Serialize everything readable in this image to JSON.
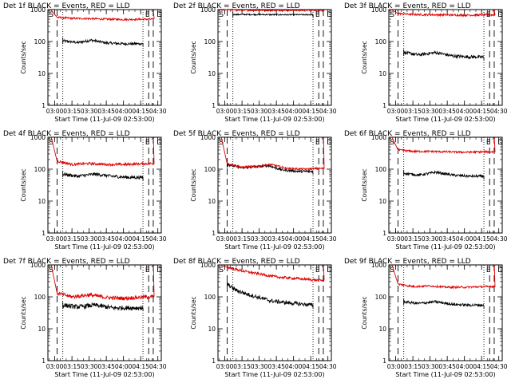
{
  "colors": {
    "events": "#000000",
    "lld": "#e00000",
    "axis": "#000000",
    "background": "#ffffff"
  },
  "chart_data": [
    {
      "type": "line",
      "title": "Det 1f BLACK = Events, RED = LLD",
      "xlabel": "Start Time (11-Jul-09 02:53:00)",
      "ylabel": "Counts/sec",
      "yscale": "log",
      "ylim": [
        1,
        1000
      ],
      "xlim": [
        "02:54",
        "04:33"
      ],
      "xticks": [
        "03:00",
        "03:15",
        "03:30",
        "03:45",
        "04:00",
        "04:15",
        "04:30"
      ],
      "yticks": [
        "1",
        "10",
        "100",
        "1000"
      ],
      "markers": {
        "S": "02:55",
        "E": "04:19",
        "D": "04:29"
      },
      "events_window": [
        "03:07",
        "04:17"
      ],
      "dashed_lines": [
        "03:02",
        "04:22",
        "04:26"
      ],
      "dotted_lines": [
        "03:07",
        "04:17"
      ],
      "series": [
        {
          "color": "black",
          "start": "03:07",
          "end": "04:17",
          "points": [
            [
              "03:07",
              105
            ],
            [
              "03:20",
              92
            ],
            [
              "03:32",
              110
            ],
            [
              "03:45",
              90
            ],
            [
              "04:00",
              85
            ],
            [
              "04:17",
              85
            ]
          ],
          "noise": 0.04
        },
        {
          "color": "red",
          "start": "02:56",
          "end": "04:27",
          "spike_start": [
            "02:56",
            1000
          ],
          "spike_end": [
            "04:27",
            1000
          ],
          "points": [
            [
              "03:02",
              570
            ],
            [
              "03:15",
              530
            ],
            [
              "03:30",
              520
            ],
            [
              "03:45",
              500
            ],
            [
              "04:00",
              490
            ],
            [
              "04:22",
              500
            ]
          ],
          "noise": 0.03
        }
      ]
    },
    {
      "type": "line",
      "title": "Det 2f BLACK = Events, RED = LLD",
      "xlabel": "Start Time (11-Jul-09 02:53:00)",
      "ylabel": "Counts/sec",
      "yscale": "log",
      "ylim": [
        1,
        1000
      ],
      "xlim": [
        "02:54",
        "04:33"
      ],
      "xticks": [
        "03:00",
        "03:15",
        "03:30",
        "03:45",
        "04:00",
        "04:15",
        "04:30"
      ],
      "yticks": [
        "1",
        "10",
        "100",
        "1000"
      ],
      "markers": {
        "S": "02:55",
        "E": "04:19",
        "D": "04:29"
      },
      "events_window": [
        "03:07",
        "04:17"
      ],
      "dashed_lines": [
        "03:02",
        "04:22",
        "04:26"
      ],
      "dotted_lines": [
        "03:07",
        "04:17"
      ],
      "series": [
        {
          "color": "black",
          "start": "03:07",
          "end": "04:17",
          "points": [
            [
              "03:07",
              700
            ],
            [
              "03:30",
              700
            ],
            [
              "03:45",
              690
            ],
            [
              "04:00",
              690
            ],
            [
              "04:17",
              690
            ]
          ],
          "noise": 0.02
        },
        {
          "color": "red",
          "start": "02:56",
          "end": "04:27",
          "spike_start": [
            "02:56",
            1000
          ],
          "spike_end": [
            "04:27",
            1000
          ],
          "points": [
            [
              "03:02",
              1000
            ],
            [
              "03:15",
              950
            ],
            [
              "03:30",
              950
            ],
            [
              "03:45",
              940
            ],
            [
              "04:00",
              950
            ],
            [
              "04:22",
              950
            ]
          ],
          "noise": 0.02
        }
      ]
    },
    {
      "type": "line",
      "title": "Det 3f BLACK = Events, RED = LLD",
      "xlabel": "Start Time (11-Jul-09 02:53:00)",
      "ylabel": "Counts/sec",
      "yscale": "log",
      "ylim": [
        1,
        1000
      ],
      "xlim": [
        "02:54",
        "04:33"
      ],
      "xticks": [
        "03:00",
        "03:15",
        "03:30",
        "03:45",
        "04:00",
        "04:15",
        "04:30"
      ],
      "yticks": [
        "1",
        "10",
        "100",
        "1000"
      ],
      "markers": {
        "S": "02:55",
        "E": "04:19",
        "D": "04:29"
      },
      "events_window": [
        "03:07",
        "04:17"
      ],
      "dashed_lines": [
        "03:02",
        "04:22",
        "04:26"
      ],
      "dotted_lines": [
        "03:07",
        "04:17"
      ],
      "series": [
        {
          "color": "black",
          "start": "03:07",
          "end": "04:17",
          "points": [
            [
              "03:07",
              45
            ],
            [
              "03:20",
              38
            ],
            [
              "03:35",
              45
            ],
            [
              "03:50",
              35
            ],
            [
              "04:05",
              33
            ],
            [
              "04:17",
              32
            ]
          ],
          "noise": 0.05
        },
        {
          "color": "red",
          "start": "02:56",
          "end": "04:27",
          "spike_start": [
            "02:56",
            1000
          ],
          "spike_end": [
            "04:27",
            1000
          ],
          "points": [
            [
              "03:02",
              750
            ],
            [
              "03:15",
              700
            ],
            [
              "03:30",
              690
            ],
            [
              "03:45",
              680
            ],
            [
              "04:00",
              670
            ],
            [
              "04:22",
              680
            ]
          ],
          "noise": 0.03
        }
      ]
    },
    {
      "type": "line",
      "title": "Det 4f BLACK = Events, RED = LLD",
      "xlabel": "Start Time (11-Jul-09 02:53:00)",
      "ylabel": "Counts/sec",
      "yscale": "log",
      "ylim": [
        1,
        1000
      ],
      "xlim": [
        "02:54",
        "04:33"
      ],
      "xticks": [
        "03:00",
        "03:15",
        "03:30",
        "03:45",
        "04:00",
        "04:15",
        "04:30"
      ],
      "yticks": [
        "1",
        "10",
        "100",
        "1000"
      ],
      "markers": {
        "S": "02:55",
        "E": "04:19",
        "D": "04:29"
      },
      "events_window": [
        "03:07",
        "04:17"
      ],
      "dashed_lines": [
        "03:02",
        "04:22",
        "04:26"
      ],
      "dotted_lines": [
        "03:07",
        "04:17"
      ],
      "series": [
        {
          "color": "black",
          "start": "03:07",
          "end": "04:17",
          "points": [
            [
              "03:07",
              70
            ],
            [
              "03:20",
              60
            ],
            [
              "03:35",
              70
            ],
            [
              "03:50",
              60
            ],
            [
              "04:05",
              55
            ],
            [
              "04:17",
              55
            ]
          ],
          "noise": 0.05
        },
        {
          "color": "red",
          "start": "02:56",
          "end": "04:27",
          "spike_start": [
            "02:56",
            1000
          ],
          "spike_end": [
            "04:27",
            1000
          ],
          "points": [
            [
              "03:02",
              180
            ],
            [
              "03:15",
              140
            ],
            [
              "03:30",
              150
            ],
            [
              "03:45",
              140
            ],
            [
              "04:00",
              140
            ],
            [
              "04:22",
              150
            ]
          ],
          "noise": 0.04
        }
      ]
    },
    {
      "type": "line",
      "title": "Det 5f BLACK = Events, RED = LLD",
      "xlabel": "Start Time (11-Jul-09 02:53:00)",
      "ylabel": "Counts/sec",
      "yscale": "log",
      "ylim": [
        1,
        1000
      ],
      "xlim": [
        "02:54",
        "04:33"
      ],
      "xticks": [
        "03:00",
        "03:15",
        "03:30",
        "03:45",
        "04:00",
        "04:15",
        "04:30"
      ],
      "yticks": [
        "1",
        "10",
        "100",
        "1000"
      ],
      "markers": {
        "S": "02:55",
        "E": "04:19",
        "D": "04:29"
      },
      "events_window": [
        "03:07",
        "04:17"
      ],
      "dashed_lines": [
        "03:02",
        "04:22",
        "04:26"
      ],
      "dotted_lines": [
        "03:07",
        "04:17"
      ],
      "series": [
        {
          "color": "black",
          "start": "03:02",
          "end": "04:17",
          "points": [
            [
              "03:02",
              140
            ],
            [
              "03:15",
              110
            ],
            [
              "03:30",
              120
            ],
            [
              "03:38",
              130
            ],
            [
              "03:50",
              95
            ],
            [
              "04:05",
              85
            ],
            [
              "04:17",
              85
            ]
          ],
          "noise": 0.04
        },
        {
          "color": "red",
          "start": "02:56",
          "end": "04:27",
          "spike_start": [
            "02:56",
            1000
          ],
          "spike_end": [
            "04:27",
            1000
          ],
          "points": [
            [
              "03:02",
              150
            ],
            [
              "03:15",
              115
            ],
            [
              "03:30",
              125
            ],
            [
              "03:40",
              140
            ],
            [
              "03:55",
              105
            ],
            [
              "04:10",
              100
            ],
            [
              "04:22",
              105
            ]
          ],
          "noise": 0.03
        }
      ]
    },
    {
      "type": "line",
      "title": "Det 6f BLACK = Events, RED = LLD",
      "xlabel": "Start Time (11-Jul-09 02:53:00)",
      "ylabel": "Counts/sec",
      "yscale": "log",
      "ylim": [
        1,
        1000
      ],
      "xlim": [
        "02:54",
        "04:33"
      ],
      "xticks": [
        "03:00",
        "03:15",
        "03:30",
        "03:45",
        "04:00",
        "04:15",
        "04:30"
      ],
      "yticks": [
        "1",
        "10",
        "100",
        "1000"
      ],
      "markers": {
        "S": "02:55",
        "E": "04:19",
        "D": "04:29"
      },
      "events_window": [
        "03:07",
        "04:17"
      ],
      "dashed_lines": [
        "03:02",
        "04:22",
        "04:26"
      ],
      "dotted_lines": [
        "03:07",
        "04:17"
      ],
      "series": [
        {
          "color": "black",
          "start": "03:07",
          "end": "04:17",
          "points": [
            [
              "03:07",
              75
            ],
            [
              "03:20",
              65
            ],
            [
              "03:35",
              80
            ],
            [
              "03:50",
              65
            ],
            [
              "04:05",
              60
            ],
            [
              "04:17",
              60
            ]
          ],
          "noise": 0.04
        },
        {
          "color": "red",
          "start": "02:56",
          "end": "04:27",
          "spike_start": [
            "02:56",
            1000
          ],
          "spike_end": [
            "04:27",
            1000
          ],
          "points": [
            [
              "03:02",
              400
            ],
            [
              "03:15",
              360
            ],
            [
              "03:30",
              360
            ],
            [
              "03:45",
              350
            ],
            [
              "04:00",
              340
            ],
            [
              "04:22",
              350
            ]
          ],
          "noise": 0.03
        }
      ]
    },
    {
      "type": "line",
      "title": "Det 7f BLACK = Events, RED = LLD",
      "xlabel": "Start Time (11-Jul-09 02:53:00)",
      "ylabel": "Counts/sec",
      "yscale": "log",
      "ylim": [
        1,
        1000
      ],
      "xlim": [
        "02:54",
        "04:33"
      ],
      "xticks": [
        "03:00",
        "03:15",
        "03:30",
        "03:45",
        "04:00",
        "04:15",
        "04:30"
      ],
      "yticks": [
        "1",
        "10",
        "100",
        "1000"
      ],
      "markers": {
        "S": "02:55",
        "E": "04:19",
        "D": "04:29"
      },
      "events_window": [
        "03:07",
        "04:17"
      ],
      "dashed_lines": [
        "03:02",
        "04:22",
        "04:26"
      ],
      "dotted_lines": [
        "03:07",
        "04:17"
      ],
      "series": [
        {
          "color": "black",
          "start": "03:07",
          "end": "04:17",
          "points": [
            [
              "03:07",
              55
            ],
            [
              "03:20",
              48
            ],
            [
              "03:35",
              55
            ],
            [
              "03:50",
              45
            ],
            [
              "04:05",
              45
            ],
            [
              "04:17",
              45
            ]
          ],
          "noise": 0.07
        },
        {
          "color": "red",
          "start": "02:56",
          "end": "04:27",
          "spike_start": [
            "02:56",
            1000
          ],
          "spike_end": [
            "04:27",
            1000
          ],
          "points": [
            [
              "03:02",
              130
            ],
            [
              "03:15",
              100
            ],
            [
              "03:30",
              115
            ],
            [
              "03:45",
              95
            ],
            [
              "04:00",
              90
            ],
            [
              "04:22",
              100
            ]
          ],
          "noise": 0.06
        }
      ]
    },
    {
      "type": "line",
      "title": "Det 8f BLACK = Events, RED = LLD",
      "xlabel": "Start Time (11-Jul-09 02:53:00)",
      "ylabel": "Counts/sec",
      "yscale": "log",
      "ylim": [
        1,
        1000
      ],
      "xlim": [
        "02:54",
        "04:33"
      ],
      "xticks": [
        "03:00",
        "03:15",
        "03:30",
        "03:45",
        "04:00",
        "04:15",
        "04:30"
      ],
      "yticks": [
        "1",
        "10",
        "100",
        "1000"
      ],
      "markers": {
        "S": "02:55",
        "E": "04:19",
        "D": "04:29"
      },
      "events_window": [
        "03:07",
        "04:17"
      ],
      "dashed_lines": [
        "03:02",
        "04:22",
        "04:26"
      ],
      "dotted_lines": [
        "03:07",
        "04:17"
      ],
      "series": [
        {
          "color": "black",
          "start": "03:02",
          "end": "04:17",
          "points": [
            [
              "03:02",
              250
            ],
            [
              "03:10",
              160
            ],
            [
              "03:20",
              120
            ],
            [
              "03:30",
              95
            ],
            [
              "03:40",
              75
            ],
            [
              "03:55",
              65
            ],
            [
              "04:05",
              60
            ],
            [
              "04:17",
              55
            ]
          ],
          "noise": 0.06
        },
        {
          "color": "red",
          "start": "02:56",
          "end": "04:27",
          "spike_start": [
            "02:56",
            1000
          ],
          "spike_end": [
            "04:27",
            1000
          ],
          "points": [
            [
              "03:02",
              850
            ],
            [
              "03:15",
              650
            ],
            [
              "03:30",
              520
            ],
            [
              "03:45",
              420
            ],
            [
              "04:00",
              380
            ],
            [
              "04:22",
              330
            ]
          ],
          "noise": 0.04
        }
      ]
    },
    {
      "type": "line",
      "title": "Det 9f BLACK = Events, RED = LLD",
      "xlabel": "Start Time (11-Jul-09 02:53:00)",
      "ylabel": "Counts/sec",
      "yscale": "log",
      "ylim": [
        1,
        1000
      ],
      "xlim": [
        "02:54",
        "04:33"
      ],
      "xticks": [
        "03:00",
        "03:15",
        "03:30",
        "03:45",
        "04:00",
        "04:15",
        "04:30"
      ],
      "yticks": [
        "1",
        "10",
        "100",
        "1000"
      ],
      "markers": {
        "S": "02:55",
        "E": "04:19",
        "D": "04:29"
      },
      "events_window": [
        "03:07",
        "04:17"
      ],
      "dashed_lines": [
        "03:02",
        "04:22",
        "04:26"
      ],
      "dotted_lines": [
        "03:07",
        "04:17"
      ],
      "series": [
        {
          "color": "black",
          "start": "03:07",
          "end": "04:17",
          "points": [
            [
              "03:07",
              70
            ],
            [
              "03:20",
              62
            ],
            [
              "03:35",
              70
            ],
            [
              "03:50",
              58
            ],
            [
              "04:05",
              55
            ],
            [
              "04:17",
              55
            ]
          ],
          "noise": 0.04
        },
        {
          "color": "red",
          "start": "02:56",
          "end": "04:27",
          "spike_start": [
            "02:56",
            1000
          ],
          "spike_end": [
            "04:27",
            1000
          ],
          "points": [
            [
              "03:02",
              250
            ],
            [
              "03:15",
              210
            ],
            [
              "03:30",
              220
            ],
            [
              "03:45",
              200
            ],
            [
              "04:00",
              200
            ],
            [
              "04:22",
              210
            ]
          ],
          "noise": 0.03
        }
      ]
    }
  ]
}
